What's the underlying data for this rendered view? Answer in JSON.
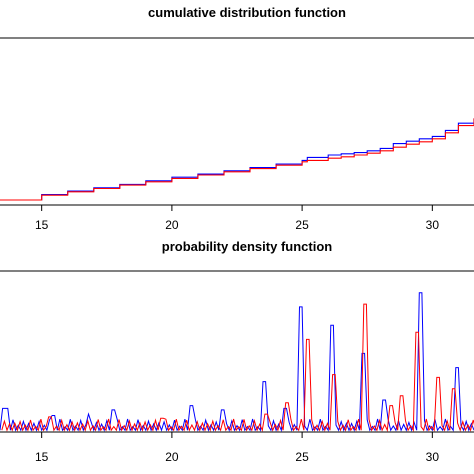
{
  "chart_data": [
    {
      "type": "line",
      "title": "cumulative distribution function",
      "xlabel": "",
      "ylabel": "",
      "xlim": [
        13.4,
        31.6
      ],
      "ylim": [
        0,
        1
      ],
      "x_ticks": [
        "15",
        "20",
        "25",
        "30"
      ],
      "y_ticks": [],
      "grid": false,
      "legend": "none",
      "series": [
        {
          "color": "#0000ff",
          "x": [
            13.4,
            15,
            16,
            17,
            18,
            19,
            20,
            21,
            22,
            23,
            24,
            25,
            25.2,
            26,
            26.5,
            27,
            27.5,
            28,
            28.5,
            29,
            29.5,
            30,
            30.5,
            31,
            31.6
          ],
          "y": [
            0.0,
            0.045,
            0.074,
            0.102,
            0.13,
            0.16,
            0.19,
            0.217,
            0.243,
            0.27,
            0.3,
            0.33,
            0.355,
            0.375,
            0.385,
            0.395,
            0.41,
            0.43,
            0.47,
            0.49,
            0.51,
            0.53,
            0.58,
            0.64,
            0.68
          ]
        },
        {
          "color": "#ff0000",
          "x": [
            13.4,
            15,
            16,
            17,
            18,
            19,
            20,
            21,
            22,
            23,
            24,
            25,
            25.2,
            26,
            26.5,
            27,
            27.5,
            28,
            28.5,
            29,
            29.5,
            30,
            30.5,
            31,
            31.6
          ],
          "y": [
            0.0,
            0.04,
            0.068,
            0.096,
            0.124,
            0.152,
            0.18,
            0.208,
            0.235,
            0.262,
            0.29,
            0.318,
            0.33,
            0.348,
            0.36,
            0.375,
            0.39,
            0.41,
            0.44,
            0.465,
            0.485,
            0.51,
            0.56,
            0.62,
            0.68
          ]
        }
      ]
    },
    {
      "type": "line",
      "title": "probability density function",
      "xlabel": "",
      "ylabel": "",
      "xlim": [
        13.4,
        31.6
      ],
      "ylim": [
        0,
        1
      ],
      "x_ticks": [
        "15",
        "20",
        "25",
        "30"
      ],
      "y_ticks": [],
      "grid": false,
      "legend": "none",
      "spike_step": 0.2,
      "spike_base": 0.03,
      "spike_amp": 0.055,
      "series": [
        {
          "color": "#0000ff",
          "peaks": [
            [
              13.7,
              0.16
            ],
            [
              15.4,
              0.11
            ],
            [
              16.9,
              0.12
            ],
            [
              17.8,
              0.15
            ],
            [
              20.8,
              0.18
            ],
            [
              22.0,
              0.15
            ],
            [
              23.5,
              0.35
            ],
            [
              24.4,
              0.16
            ],
            [
              25.0,
              0.88
            ],
            [
              26.2,
              0.75
            ],
            [
              27.3,
              0.55
            ],
            [
              28.2,
              0.22
            ],
            [
              29.5,
              0.98
            ],
            [
              31.0,
              0.45
            ]
          ]
        },
        {
          "color": "#ff0000",
          "peaks": [
            [
              15.2,
              0.1
            ],
            [
              19.6,
              0.09
            ],
            [
              23.6,
              0.12
            ],
            [
              24.3,
              0.2
            ],
            [
              25.1,
              0.65
            ],
            [
              26.1,
              0.4
            ],
            [
              27.4,
              0.9
            ],
            [
              28.3,
              0.18
            ],
            [
              28.9,
              0.25
            ],
            [
              29.4,
              0.7
            ],
            [
              30.1,
              0.38
            ],
            [
              30.9,
              0.3
            ]
          ]
        }
      ]
    }
  ]
}
